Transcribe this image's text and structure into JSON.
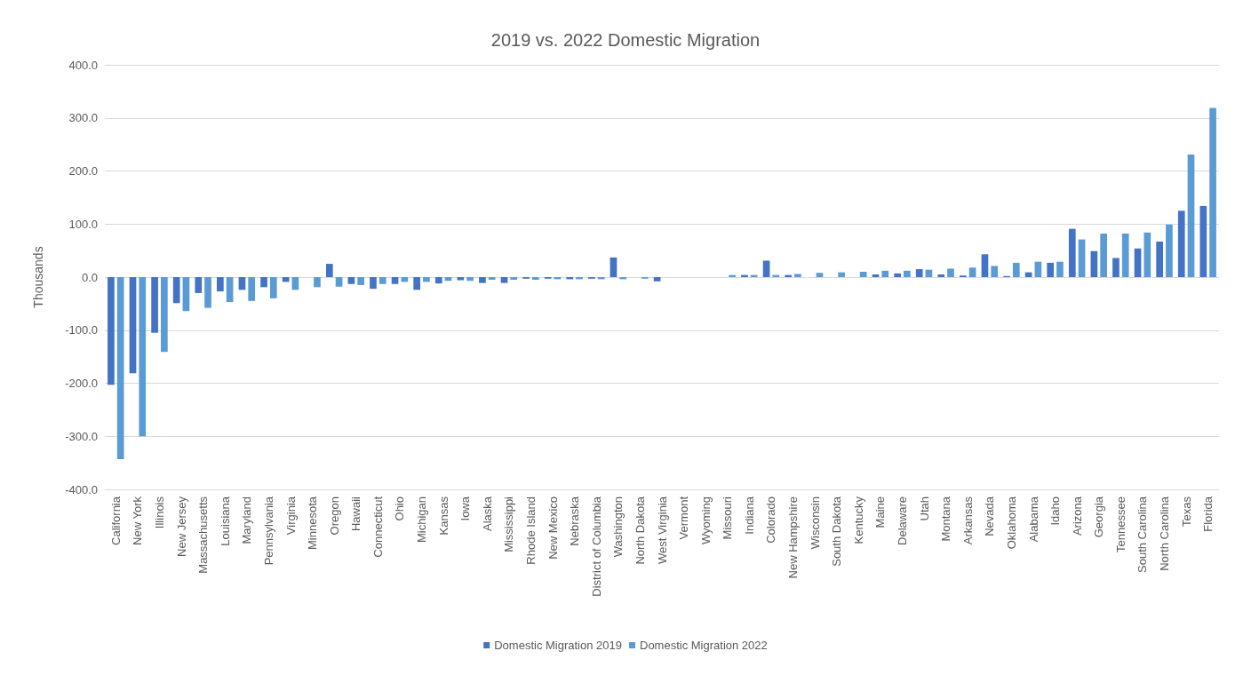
{
  "chart_data": {
    "type": "bar",
    "title": "2019 vs. 2022 Domestic Migration",
    "ylabel": "Thousands",
    "categories": [
      "California",
      "New York",
      "Illinois",
      "New Jersey",
      "Massachusetts",
      "Louisiana",
      "Maryland",
      "Pennsylvania",
      "Virginia",
      "Minnesota",
      "Oregon",
      "Hawaii",
      "Connecticut",
      "Ohio",
      "Michigan",
      "Kansas",
      "Iowa",
      "Alaska",
      "Mississippi",
      "Rhode Island",
      "New Mexico",
      "Nebraska",
      "District of Columbia",
      "Washington",
      "North Dakota",
      "West Virginia",
      "Vermont",
      "Wyoming",
      "Missouri",
      "Indiana",
      "Colorado",
      "New Hampshire",
      "Wisconsin",
      "South Dakota",
      "Kentucky",
      "Maine",
      "Delaware",
      "Utah",
      "Montana",
      "Arkansas",
      "Nevada",
      "Oklahoma",
      "Alabama",
      "Idaho",
      "Arizona",
      "Georgia",
      "Tennessee",
      "South Carolina",
      "North Carolina",
      "Texas",
      "Florida"
    ],
    "series": [
      {
        "name": "Domestic Migration 2019",
        "color": "#4472c4",
        "values": [
          -203,
          -181,
          -105,
          -49,
          -30,
          -27,
          -24,
          -19,
          -9,
          0,
          25,
          -13,
          -22,
          -13,
          -24,
          -12,
          -6,
          -11,
          -11,
          -3,
          -3,
          -4,
          -3,
          37,
          0,
          -8,
          0,
          0,
          0,
          4,
          31,
          4,
          0,
          0,
          0,
          5,
          7,
          15,
          5,
          3,
          43,
          2,
          9,
          27,
          91,
          49,
          36,
          54,
          67,
          125,
          134
        ]
      },
      {
        "name": "Domestic Migration 2022",
        "color": "#5b9bd5",
        "values": [
          -343,
          -300,
          -141,
          -64,
          -58,
          -47,
          -45,
          -40,
          -24,
          -19,
          -18,
          -15,
          -13,
          -9,
          -9,
          -7,
          -7,
          -5,
          -5,
          -5,
          -4,
          -4,
          -4,
          -4,
          -3,
          0,
          0,
          0,
          4,
          4,
          4,
          6,
          8,
          9,
          10,
          12,
          12,
          14,
          16,
          18,
          21,
          27,
          29,
          29,
          71,
          82,
          82,
          84,
          99,
          231,
          319
        ]
      }
    ],
    "ylim": [
      -400,
      400
    ],
    "yticks": [
      {
        "value": -400,
        "label": "-400.0"
      },
      {
        "value": -300,
        "label": "-300.0"
      },
      {
        "value": -200,
        "label": "-200.0"
      },
      {
        "value": -100,
        "label": "-100.0"
      },
      {
        "value": 0,
        "label": "0.0"
      },
      {
        "value": 100,
        "label": "100.0"
      },
      {
        "value": 200,
        "label": "200.0"
      },
      {
        "value": 300,
        "label": "300.0"
      },
      {
        "value": 400,
        "label": "400.0"
      }
    ],
    "grid": "y",
    "legend": "bottom"
  }
}
